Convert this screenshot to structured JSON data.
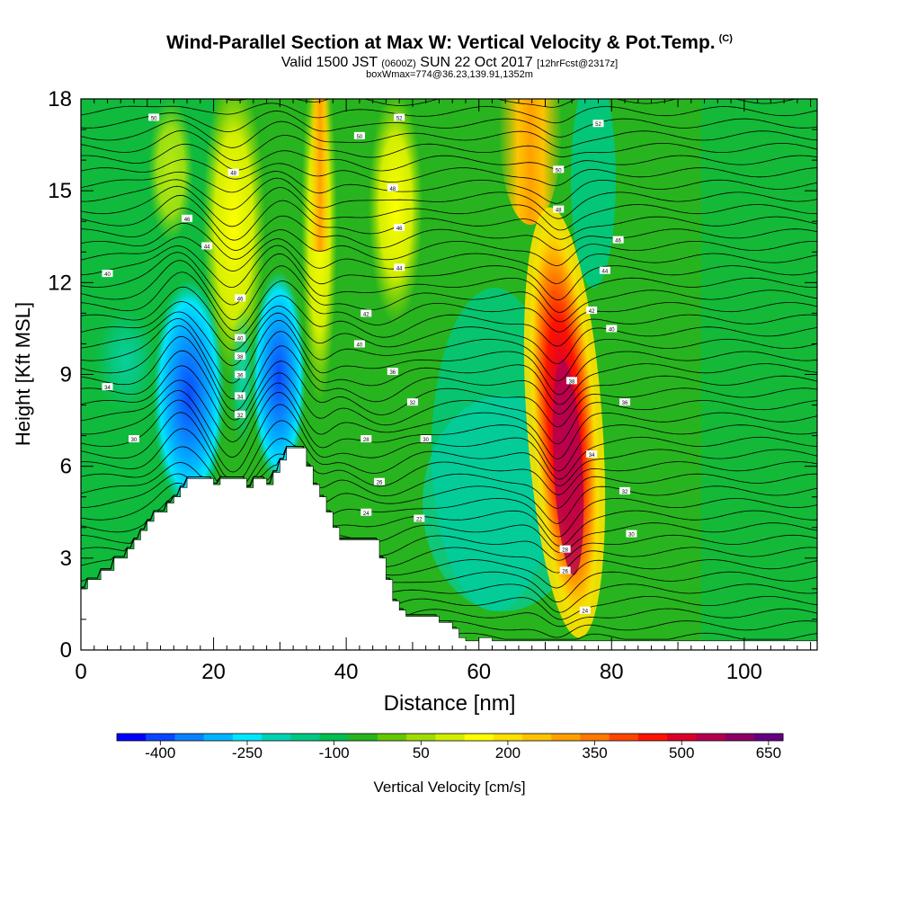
{
  "header": {
    "title": "Wind-Parallel Section at Max W: Vertical Velocity & Pot.Temp.",
    "title_mark": "(C)",
    "valid_prefix": "Valid 1500 JST",
    "valid_zulu": "(0600Z)",
    "valid_date": "SUN 22 Oct 2017",
    "forecast": "[12hrFcst@2317z]",
    "box_info": "boxWmax=774@36.23,139.91,1352m"
  },
  "chart_data": {
    "type": "heatmap",
    "xlabel": "Distance [nm]",
    "ylabel": "Height [Kft MSL]",
    "xlim": [
      0,
      111
    ],
    "ylim": [
      0,
      18
    ],
    "x_ticks": [
      0,
      20,
      40,
      60,
      80,
      100
    ],
    "y_ticks": [
      0,
      3,
      6,
      9,
      12,
      15,
      18
    ],
    "colorbar": {
      "label": "Vertical Velocity [cm/s]",
      "tick_labels": [
        -400,
        -250,
        -100,
        50,
        200,
        350,
        500,
        650
      ],
      "colors": [
        "#0000ff",
        "#0a46ff",
        "#0a82ff",
        "#00b4ff",
        "#00e6ff",
        "#00d2b4",
        "#00c882",
        "#00be50",
        "#28b41e",
        "#64c800",
        "#a0dc00",
        "#d2ee00",
        "#ffff00",
        "#ffe100",
        "#ffc300",
        "#ffa000",
        "#ff7800",
        "#ff4600",
        "#ff1400",
        "#dc0028",
        "#b40050",
        "#8c0064",
        "#640082"
      ]
    },
    "terrain_heights_kft": [
      [
        0,
        2.0
      ],
      [
        1,
        2.3
      ],
      [
        3,
        2.6
      ],
      [
        5,
        3.0
      ],
      [
        7,
        3.3
      ],
      [
        8,
        3.6
      ],
      [
        9,
        3.9
      ],
      [
        10,
        4.2
      ],
      [
        11,
        4.5
      ],
      [
        13,
        4.8
      ],
      [
        14,
        5.0
      ],
      [
        15,
        5.3
      ],
      [
        16,
        5.6
      ],
      [
        20,
        5.6
      ],
      [
        20,
        5.4
      ],
      [
        21,
        5.4
      ],
      [
        21,
        5.6
      ],
      [
        24,
        5.6
      ],
      [
        25,
        5.3
      ],
      [
        26,
        5.3
      ],
      [
        26,
        5.6
      ],
      [
        28,
        5.4
      ],
      [
        29,
        5.8
      ],
      [
        30,
        6.2
      ],
      [
        31,
        6.6
      ],
      [
        33,
        6.6
      ],
      [
        34,
        6.0
      ],
      [
        35,
        5.4
      ],
      [
        36,
        5.0
      ],
      [
        37,
        4.5
      ],
      [
        38,
        4.0
      ],
      [
        39,
        3.6
      ],
      [
        40,
        3.6
      ],
      [
        44,
        3.6
      ],
      [
        45,
        3.0
      ],
      [
        46,
        2.3
      ],
      [
        47,
        1.6
      ],
      [
        48,
        1.3
      ],
      [
        49,
        1.1
      ],
      [
        53,
        1.1
      ],
      [
        54,
        0.9
      ],
      [
        56,
        0.7
      ],
      [
        57,
        0.4
      ],
      [
        58,
        0.3
      ],
      [
        60,
        0.4
      ],
      [
        62,
        0.3
      ],
      [
        111,
        0.3
      ]
    ],
    "theta_labels": [
      {
        "x": 4,
        "y": 8.6,
        "text": "34"
      },
      {
        "x": 8,
        "y": 6.9,
        "text": "30"
      },
      {
        "x": 4,
        "y": 12.3,
        "text": "40"
      },
      {
        "x": 11,
        "y": 17.4,
        "text": "50"
      },
      {
        "x": 16,
        "y": 14.1,
        "text": "46"
      },
      {
        "x": 19,
        "y": 13.2,
        "text": "44"
      },
      {
        "x": 23,
        "y": 15.6,
        "text": "48"
      },
      {
        "x": 24,
        "y": 11.5,
        "text": "46"
      },
      {
        "x": 24,
        "y": 10.2,
        "text": "40"
      },
      {
        "x": 24,
        "y": 9.6,
        "text": "38"
      },
      {
        "x": 24,
        "y": 9.0,
        "text": "36"
      },
      {
        "x": 24,
        "y": 8.3,
        "text": "34"
      },
      {
        "x": 24,
        "y": 7.7,
        "text": "32"
      },
      {
        "x": 43,
        "y": 11.0,
        "text": "42"
      },
      {
        "x": 42,
        "y": 10.0,
        "text": "40"
      },
      {
        "x": 47,
        "y": 9.1,
        "text": "36"
      },
      {
        "x": 50,
        "y": 8.1,
        "text": "32"
      },
      {
        "x": 52,
        "y": 6.9,
        "text": "30"
      },
      {
        "x": 43,
        "y": 6.9,
        "text": "28"
      },
      {
        "x": 45,
        "y": 5.5,
        "text": "26"
      },
      {
        "x": 43,
        "y": 4.5,
        "text": "24"
      },
      {
        "x": 51,
        "y": 4.3,
        "text": "22"
      },
      {
        "x": 48,
        "y": 17.4,
        "text": "52"
      },
      {
        "x": 42,
        "y": 16.8,
        "text": "50"
      },
      {
        "x": 47,
        "y": 15.1,
        "text": "48"
      },
      {
        "x": 48,
        "y": 13.8,
        "text": "46"
      },
      {
        "x": 48,
        "y": 12.5,
        "text": "44"
      },
      {
        "x": 78,
        "y": 17.2,
        "text": "52"
      },
      {
        "x": 72,
        "y": 15.7,
        "text": "50"
      },
      {
        "x": 72,
        "y": 14.4,
        "text": "48"
      },
      {
        "x": 81,
        "y": 13.4,
        "text": "46"
      },
      {
        "x": 79,
        "y": 12.4,
        "text": "44"
      },
      {
        "x": 77,
        "y": 11.1,
        "text": "42"
      },
      {
        "x": 80,
        "y": 10.5,
        "text": "40"
      },
      {
        "x": 74,
        "y": 8.8,
        "text": "38"
      },
      {
        "x": 82,
        "y": 8.1,
        "text": "36"
      },
      {
        "x": 77,
        "y": 6.4,
        "text": "34"
      },
      {
        "x": 82,
        "y": 5.2,
        "text": "32"
      },
      {
        "x": 83,
        "y": 3.8,
        "text": "30"
      },
      {
        "x": 73,
        "y": 3.3,
        "text": "28"
      },
      {
        "x": 73,
        "y": 2.6,
        "text": "26"
      },
      {
        "x": 76,
        "y": 1.3,
        "text": "24"
      }
    ]
  }
}
